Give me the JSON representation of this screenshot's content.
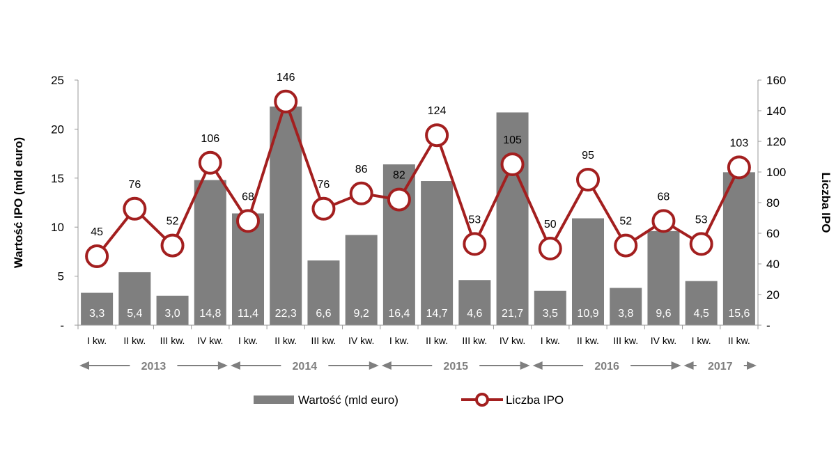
{
  "chart_data": {
    "type": "bar+line",
    "categories": [
      "I kw.",
      "II kw.",
      "III kw.",
      "IV kw.",
      "I kw.",
      "II kw.",
      "III kw.",
      "IV kw.",
      "I kw.",
      "II kw.",
      "III kw.",
      "IV kw.",
      "I kw.",
      "II kw.",
      "III kw.",
      "IV kw.",
      "I kw.",
      "II kw."
    ],
    "bar_labels": [
      "3,3",
      "5,4",
      "3,0",
      "14,8",
      "11,4",
      "22,3",
      "6,6",
      "9,2",
      "16,4",
      "14,7",
      "4,6",
      "21,7",
      "3,5",
      "10,9",
      "3,8",
      "9,6",
      "4,5",
      "15,6"
    ],
    "series": [
      {
        "name": "Wartość (mld euro)",
        "axis": "left",
        "type": "bar",
        "color": "#7f7f7f",
        "values": [
          3.3,
          5.4,
          3.0,
          14.8,
          11.4,
          22.3,
          6.6,
          9.2,
          16.4,
          14.7,
          4.6,
          21.7,
          3.5,
          10.9,
          3.8,
          9.6,
          4.5,
          15.6
        ]
      },
      {
        "name": "Liczba IPO",
        "axis": "right",
        "type": "line",
        "color": "#a31f1f",
        "values": [
          45,
          76,
          52,
          106,
          68,
          146,
          76,
          86,
          82,
          124,
          53,
          105,
          50,
          95,
          52,
          68,
          53,
          103
        ]
      }
    ],
    "years": [
      {
        "label": "2013",
        "start": 0,
        "end": 3
      },
      {
        "label": "2014",
        "start": 4,
        "end": 7
      },
      {
        "label": "2015",
        "start": 8,
        "end": 11
      },
      {
        "label": "2016",
        "start": 12,
        "end": 15
      },
      {
        "label": "2017",
        "start": 16,
        "end": 17
      }
    ],
    "ylabel_left": "Wartość IPO (mld euro)",
    "ylabel_right": "Liczba IPO",
    "ylim_left": [
      0,
      25
    ],
    "yticks_left": [
      "-",
      "5",
      "10",
      "15",
      "20",
      "25"
    ],
    "ylim_right": [
      0,
      160
    ],
    "yticks_right": [
      "-",
      "20",
      "40",
      "60",
      "80",
      "100",
      "120",
      "140",
      "160"
    ],
    "legend_position": "bottom",
    "grid": false
  }
}
